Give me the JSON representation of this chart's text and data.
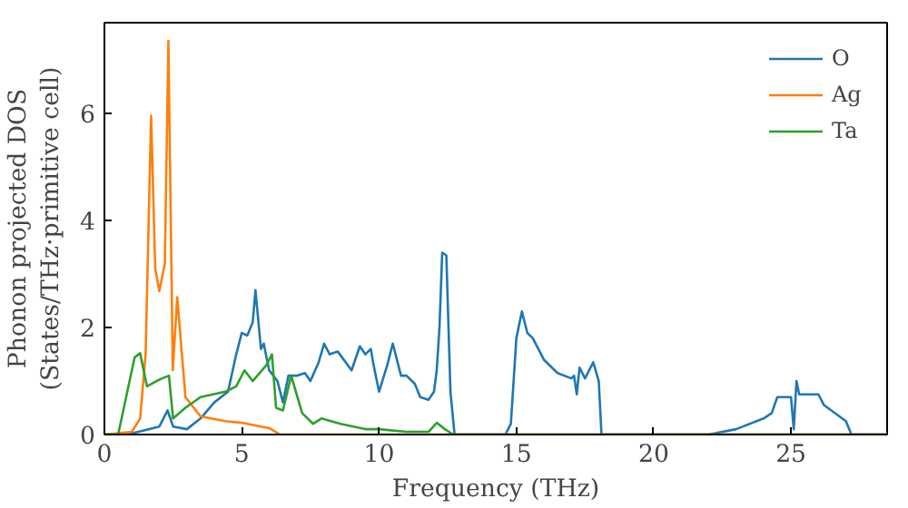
{
  "chart_data": {
    "type": "line",
    "xlabel": "Frequency (THz)",
    "ylabel": "Phonon projected DOS\n(States/THz·primitive cell)",
    "xlim": [
      0,
      28.5
    ],
    "ylim": [
      0,
      7.7
    ],
    "xticks": [
      0,
      5,
      10,
      15,
      20,
      25
    ],
    "yticks": [
      0,
      2,
      4,
      6
    ],
    "grid": false,
    "legend": "top right",
    "series": [
      {
        "name": "O",
        "color": "#1f77b4",
        "x": [
          0,
          1,
          2,
          2.3,
          2.5,
          3,
          3.5,
          4,
          4.5,
          4.8,
          5,
          5.2,
          5.4,
          5.5,
          5.7,
          5.8,
          6.0,
          6.3,
          6.5,
          6.7,
          7,
          7.3,
          7.5,
          7.8,
          8,
          8.2,
          8.5,
          9,
          9.3,
          9.5,
          9.7,
          9.8,
          10,
          10.3,
          10.5,
          10.8,
          11,
          11.3,
          11.5,
          11.8,
          12,
          12.1,
          12.2,
          12.3,
          12.45,
          12.6,
          12.75,
          13,
          14.6,
          14.8,
          15.0,
          15.2,
          15.4,
          15.6,
          16,
          16.5,
          17,
          17.1,
          17.2,
          17.3,
          17.5,
          17.8,
          18,
          18.1,
          22,
          23,
          24,
          24.3,
          24.5,
          25,
          25.1,
          25.2,
          25.3,
          25.5,
          26,
          26.2,
          27,
          27.2,
          28.5
        ],
        "values": [
          0,
          0.02,
          0.15,
          0.45,
          0.15,
          0.1,
          0.3,
          0.6,
          0.8,
          1.5,
          1.9,
          1.85,
          2.1,
          2.7,
          1.6,
          1.7,
          1.2,
          1.0,
          0.6,
          1.1,
          1.1,
          1.15,
          1.0,
          1.35,
          1.7,
          1.5,
          1.55,
          1.2,
          1.65,
          1.5,
          1.6,
          1.3,
          0.8,
          1.3,
          1.7,
          1.1,
          1.1,
          0.95,
          0.7,
          0.65,
          0.8,
          1.2,
          2.0,
          3.4,
          3.35,
          0.8,
          0,
          0,
          0,
          0.2,
          1.8,
          2.3,
          1.9,
          1.8,
          1.4,
          1.15,
          1.05,
          1.1,
          0.75,
          1.25,
          1.05,
          1.35,
          1.0,
          0,
          0,
          0.1,
          0.3,
          0.4,
          0.7,
          0.7,
          0.1,
          1.0,
          0.75,
          0.75,
          0.75,
          0.55,
          0.25,
          0,
          0
        ]
      },
      {
        "name": "Ag",
        "color": "#ff7f0e",
        "x": [
          0,
          1,
          1.3,
          1.5,
          1.7,
          1.85,
          2.0,
          2.2,
          2.33,
          2.49,
          2.65,
          2.95,
          3.5,
          4.4,
          5.0,
          6.0,
          6.4,
          28.5
        ],
        "values": [
          0,
          0.05,
          0.3,
          1.5,
          5.96,
          3.1,
          2.68,
          3.2,
          7.36,
          1.2,
          2.57,
          0.7,
          0.34,
          0.25,
          0.22,
          0.12,
          0,
          0
        ]
      },
      {
        "name": "Ta",
        "color": "#2ca02c",
        "x": [
          0,
          0.5,
          1.1,
          1.3,
          1.55,
          1.9,
          2.1,
          2.35,
          2.5,
          2.95,
          3.5,
          4.4,
          4.8,
          5.1,
          5.4,
          5.9,
          6.1,
          6.25,
          6.5,
          6.8,
          7.2,
          7.6,
          7.9,
          8.6,
          9.5,
          10,
          11,
          11.8,
          12.1,
          12.4,
          12.7,
          28.5
        ],
        "values": [
          0,
          0,
          1.44,
          1.52,
          0.9,
          1.0,
          1.05,
          1.1,
          0.3,
          0.5,
          0.7,
          0.8,
          0.9,
          1.2,
          1.0,
          1.3,
          1.5,
          0.5,
          0.45,
          1.1,
          0.4,
          0.2,
          0.3,
          0.2,
          0.1,
          0.1,
          0.05,
          0.05,
          0.22,
          0.1,
          0,
          0
        ]
      }
    ]
  }
}
